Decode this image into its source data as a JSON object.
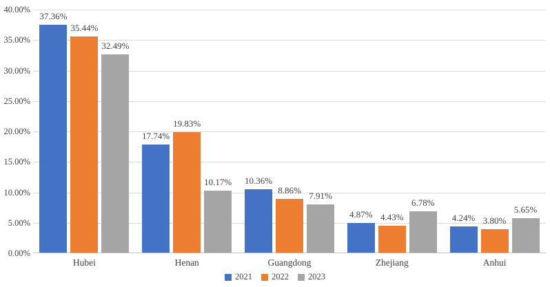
{
  "chart_data": {
    "type": "bar",
    "title": "",
    "xlabel": "",
    "ylabel": "",
    "categories": [
      "Hubei",
      "Henan",
      "Guangdong",
      "Zhejiang",
      "Anhui"
    ],
    "series": [
      {
        "name": "2021",
        "color": "#4472C4",
        "values": [
          37.36,
          17.74,
          10.36,
          4.87,
          4.24
        ],
        "labels": [
          "37.36%",
          "17.74%",
          "10.36%",
          "4.87%",
          "4.24%"
        ]
      },
      {
        "name": "2022",
        "color": "#ED7D31",
        "values": [
          35.44,
          19.83,
          8.86,
          4.43,
          3.8
        ],
        "labels": [
          "35.44%",
          "19.83%",
          "8.86%",
          "4.43%",
          "3.80%"
        ]
      },
      {
        "name": "2023",
        "color": "#A5A5A5",
        "values": [
          32.49,
          10.17,
          7.91,
          6.78,
          5.65
        ],
        "labels": [
          "32.49%",
          "10.17%",
          "7.91%",
          "6.78%",
          "5.65%"
        ]
      }
    ],
    "ylim": [
      0,
      40
    ],
    "ytick_step": 5,
    "ytick_labels": [
      "0.00%",
      "5.00%",
      "10.00%",
      "15.00%",
      "20.00%",
      "25.00%",
      "30.00%",
      "35.00%",
      "40.00%"
    ],
    "grid": true,
    "legend_position": "bottom",
    "legend_entries": [
      "2021",
      "2022",
      "2023"
    ]
  },
  "style": {
    "gridline_color": "#D9D9D9",
    "axis_line_color": "#BFBFBF",
    "text_color": "#404040",
    "background_color": "#FFFFFF"
  }
}
